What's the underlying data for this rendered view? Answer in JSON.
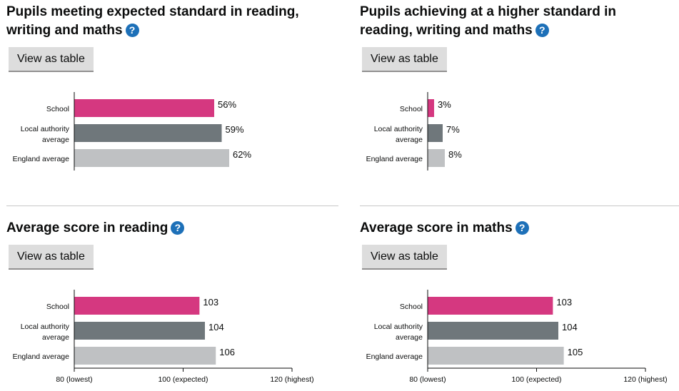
{
  "button_label": "View as table",
  "help_symbol": "?",
  "colors": {
    "school": "#d53880",
    "local_authority": "#6f777b",
    "england": "#bfc1c3",
    "help": "#1d70b8"
  },
  "series_labels": [
    [
      "School"
    ],
    [
      "Local authority",
      "average"
    ],
    [
      "England average"
    ]
  ],
  "chart_data": [
    {
      "type": "bar",
      "title": "Pupils meeting expected standard in reading, writing and maths",
      "categories": [
        "School",
        "Local authority average",
        "England average"
      ],
      "values": [
        56,
        59,
        62
      ],
      "value_labels": [
        "56%",
        "59%",
        "62%"
      ],
      "ylim": [
        0,
        100
      ]
    },
    {
      "type": "bar",
      "title": "Pupils achieving at a higher standard in reading, writing and maths",
      "categories": [
        "School",
        "Local authority average",
        "England average"
      ],
      "values": [
        3,
        7,
        8
      ],
      "value_labels": [
        "3%",
        "7%",
        "8%"
      ],
      "ylim": [
        0,
        100
      ]
    },
    {
      "type": "bar",
      "title": "Average score in reading",
      "categories": [
        "School",
        "Local authority average",
        "England average"
      ],
      "values": [
        103,
        104,
        106
      ],
      "value_labels": [
        "103",
        "104",
        "106"
      ],
      "ylim": [
        80,
        120
      ],
      "ticks": [
        "80 (lowest)",
        "100 (expected)",
        "120 (highest)"
      ]
    },
    {
      "type": "bar",
      "title": "Average score in maths",
      "categories": [
        "School",
        "Local authority average",
        "England average"
      ],
      "values": [
        103,
        104,
        105
      ],
      "value_labels": [
        "103",
        "104",
        "105"
      ],
      "ylim": [
        80,
        120
      ],
      "ticks": [
        "80 (lowest)",
        "100 (expected)",
        "120 (highest)"
      ]
    }
  ]
}
